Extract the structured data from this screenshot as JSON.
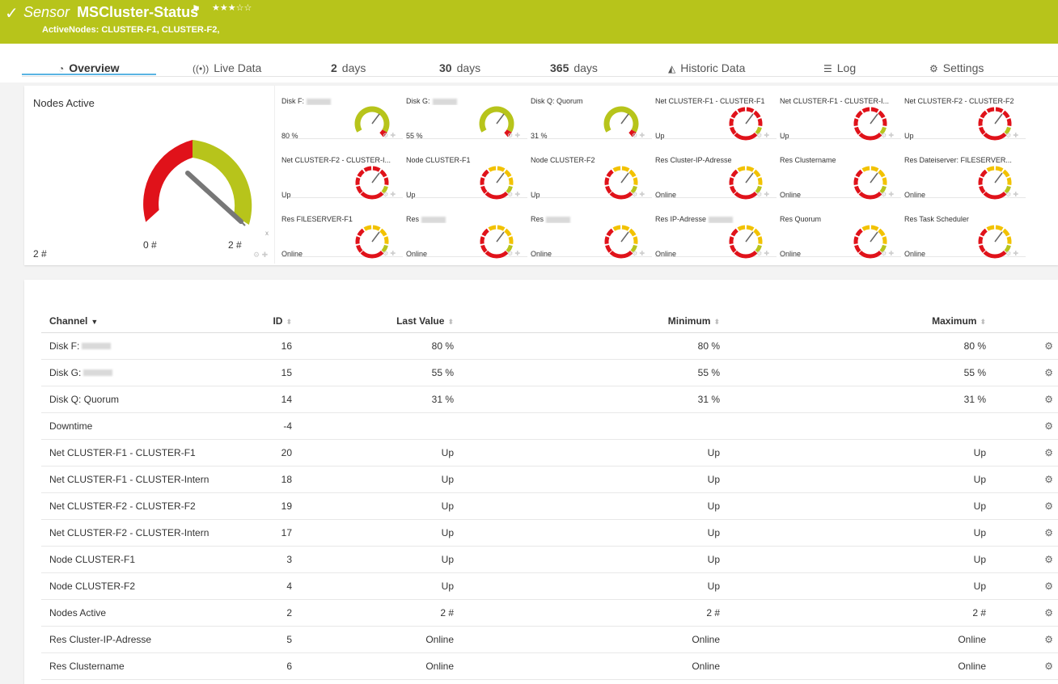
{
  "header": {
    "check_icon": "checkmark-icon",
    "sensor_kind": "Sensor",
    "sensor_name": "MSCluster-Status",
    "flag_icon": "flag-icon",
    "stars": "★★★☆☆",
    "subtitle": "ActiveNodes: CLUSTER-F1, CLUSTER-F2,"
  },
  "tabs": {
    "overview": "Overview",
    "live_data": "Live Data",
    "d2_num": "2",
    "d2_unit": "days",
    "d30_num": "30",
    "d30_unit": "days",
    "d365_num": "365",
    "d365_unit": "days",
    "historic": "Historic Data",
    "log": "Log",
    "settings": "Settings"
  },
  "big_gauge": {
    "label": "Nodes Active",
    "min": "0 #",
    "max": "2 #",
    "value": "2 #"
  },
  "gauges": [
    {
      "name": "Disk F:",
      "blur": true,
      "value": "80 %",
      "type": "disk"
    },
    {
      "name": "Disk G:",
      "blur": true,
      "value": "55 %",
      "type": "disk"
    },
    {
      "name": "Disk Q: Quorum",
      "blur": false,
      "value": "31 %",
      "type": "disk"
    },
    {
      "name": "Net CLUSTER-F1 - CLUSTER-F1",
      "blur": false,
      "value": "Up",
      "type": "red"
    },
    {
      "name": "Net CLUSTER-F1 - CLUSTER-I...",
      "blur": false,
      "value": "Up",
      "type": "red"
    },
    {
      "name": "Net CLUSTER-F2 - CLUSTER-F2",
      "blur": false,
      "value": "Up",
      "type": "red"
    },
    {
      "name": "Net CLUSTER-F2 - CLUSTER-I...",
      "blur": false,
      "value": "Up",
      "type": "red"
    },
    {
      "name": "Node CLUSTER-F1",
      "blur": false,
      "value": "Up",
      "type": "yellow"
    },
    {
      "name": "Node CLUSTER-F2",
      "blur": false,
      "value": "Up",
      "type": "yellow"
    },
    {
      "name": "Res Cluster-IP-Adresse",
      "blur": false,
      "value": "Online",
      "type": "yellow"
    },
    {
      "name": "Res Clustername",
      "blur": false,
      "value": "Online",
      "type": "yellow"
    },
    {
      "name": "Res Dateiserver: FILESERVER...",
      "blur": false,
      "value": "Online",
      "type": "yellow"
    },
    {
      "name": "Res FILESERVER-F1",
      "blur": false,
      "value": "Online",
      "type": "yellow"
    },
    {
      "name": "Res",
      "blur": true,
      "value": "Online",
      "type": "yellow"
    },
    {
      "name": "Res",
      "blur": true,
      "value": "Online",
      "type": "yellow"
    },
    {
      "name": "Res IP-Adresse",
      "blur": true,
      "value": "Online",
      "type": "yellow"
    },
    {
      "name": "Res Quorum",
      "blur": false,
      "value": "Online",
      "type": "yellow"
    },
    {
      "name": "Res Task Scheduler",
      "blur": false,
      "value": "Online",
      "type": "yellow"
    }
  ],
  "table": {
    "headers": {
      "channel": "Channel",
      "id": "ID",
      "last": "Last Value",
      "min": "Minimum",
      "max": "Maximum"
    },
    "rows": [
      {
        "channel": "Disk F:",
        "blur": true,
        "id": "16",
        "last": "80 %",
        "min": "80 %",
        "max": "80 %"
      },
      {
        "channel": "Disk G:",
        "blur": true,
        "id": "15",
        "last": "55 %",
        "min": "55 %",
        "max": "55 %"
      },
      {
        "channel": "Disk Q: Quorum",
        "blur": false,
        "id": "14",
        "last": "31 %",
        "min": "31 %",
        "max": "31 %"
      },
      {
        "channel": "Downtime",
        "blur": false,
        "id": "-4",
        "last": "",
        "min": "",
        "max": ""
      },
      {
        "channel": "Net CLUSTER-F1 - CLUSTER-F1",
        "blur": false,
        "id": "20",
        "last": "Up",
        "min": "Up",
        "max": "Up"
      },
      {
        "channel": "Net CLUSTER-F1 - CLUSTER-Intern",
        "blur": false,
        "id": "18",
        "last": "Up",
        "min": "Up",
        "max": "Up"
      },
      {
        "channel": "Net CLUSTER-F2 - CLUSTER-F2",
        "blur": false,
        "id": "19",
        "last": "Up",
        "min": "Up",
        "max": "Up"
      },
      {
        "channel": "Net CLUSTER-F2 - CLUSTER-Intern",
        "blur": false,
        "id": "17",
        "last": "Up",
        "min": "Up",
        "max": "Up"
      },
      {
        "channel": "Node CLUSTER-F1",
        "blur": false,
        "id": "3",
        "last": "Up",
        "min": "Up",
        "max": "Up"
      },
      {
        "channel": "Node CLUSTER-F2",
        "blur": false,
        "id": "4",
        "last": "Up",
        "min": "Up",
        "max": "Up"
      },
      {
        "channel": "Nodes Active",
        "blur": false,
        "id": "2",
        "last": "2 #",
        "min": "2 #",
        "max": "2 #"
      },
      {
        "channel": "Res Cluster-IP-Adresse",
        "blur": false,
        "id": "5",
        "last": "Online",
        "min": "Online",
        "max": "Online"
      },
      {
        "channel": "Res Clustername",
        "blur": false,
        "id": "6",
        "last": "Online",
        "min": "Online",
        "max": "Online"
      }
    ]
  },
  "colors": {
    "brand": "#b7c41b",
    "red": "#e0121a",
    "yellow": "#f2c200",
    "green": "#b7c41b",
    "accent": "#5ab4e3"
  }
}
